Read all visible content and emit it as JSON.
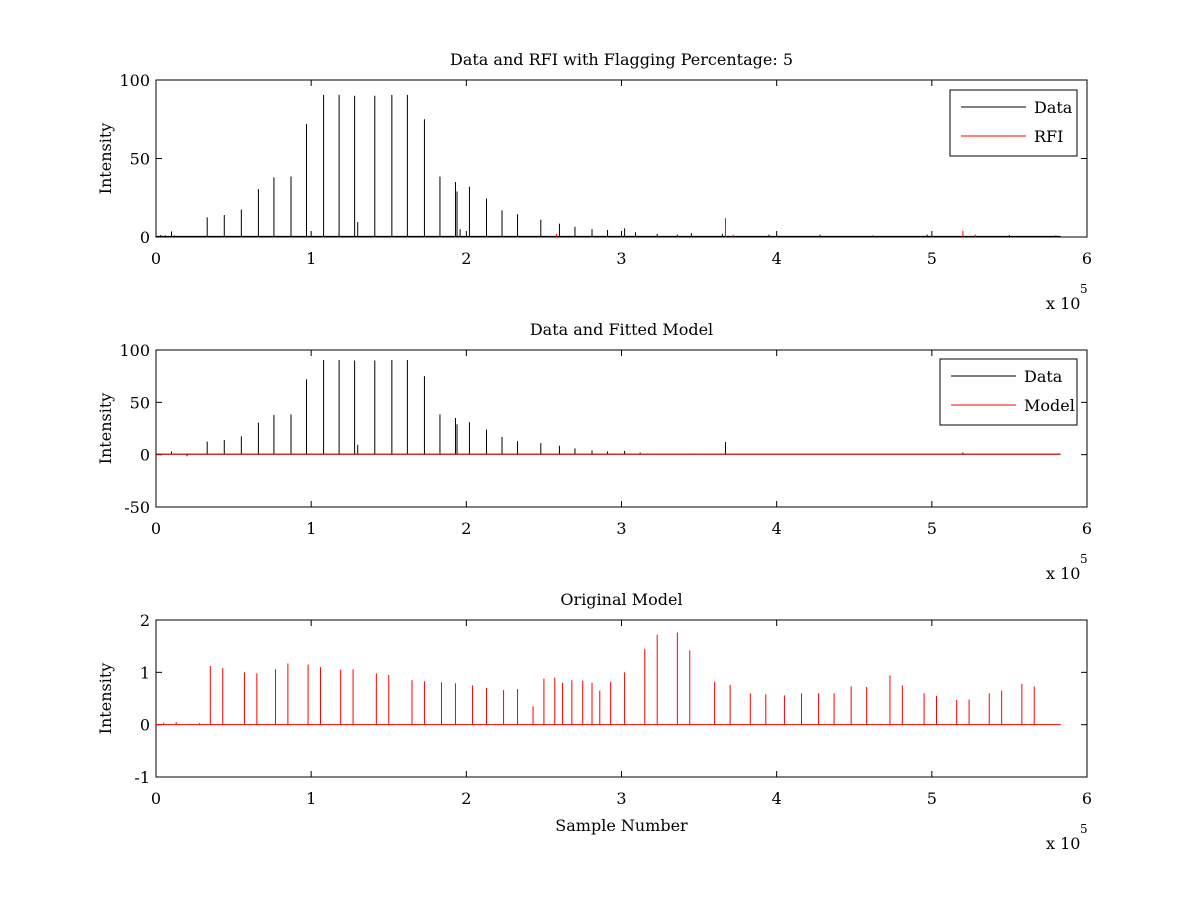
{
  "chart_data": [
    {
      "type": "line",
      "title": "Data and RFI with Flagging Percentage: 5",
      "ylabel": "Intensity",
      "xlabel": "",
      "xlim": [
        0,
        600000
      ],
      "ylim": [
        0,
        100
      ],
      "xticks": [
        0,
        1,
        2,
        3,
        4,
        5,
        6
      ],
      "yticks": [
        0,
        50,
        100
      ],
      "x_multiplier_base": "x 10",
      "x_multiplier_exp": "5",
      "grid": false,
      "legend_position": "top-right",
      "series": [
        {
          "name": "Data",
          "color": "#000000",
          "points": [
            [
              0,
              1.5
            ],
            [
              3000,
              1.2
            ],
            [
              6000,
              1.0
            ],
            [
              10000,
              3.5
            ],
            [
              12000,
              1.0
            ],
            [
              33000,
              12.5
            ],
            [
              44000,
              14
            ],
            [
              55000,
              17.5
            ],
            [
              66000,
              30.5
            ],
            [
              76000,
              38
            ],
            [
              87000,
              38.5
            ],
            [
              97000,
              72
            ],
            [
              108000,
              90.5
            ],
            [
              118000,
              90.5
            ],
            [
              128000,
              90
            ],
            [
              130000,
              9.5
            ],
            [
              141000,
              90
            ],
            [
              152000,
              90.5
            ],
            [
              162000,
              90.5
            ],
            [
              173000,
              75
            ],
            [
              183000,
              38.5
            ],
            [
              193000,
              35
            ],
            [
              194000,
              29
            ],
            [
              196000,
              5
            ],
            [
              202000,
              32
            ],
            [
              213000,
              24.5
            ],
            [
              223000,
              17
            ],
            [
              233000,
              14.5
            ],
            [
              248000,
              11
            ],
            [
              260000,
              8.5
            ],
            [
              270000,
              6.5
            ],
            [
              281000,
              5
            ],
            [
              291000,
              4.5
            ],
            [
              302000,
              5.5
            ],
            [
              309000,
              3
            ],
            [
              323000,
              2
            ],
            [
              336000,
              1.5
            ],
            [
              345000,
              2.5
            ],
            [
              365000,
              2
            ],
            [
              395000,
              1.5
            ],
            [
              428000,
              1.5
            ],
            [
              462000,
              1
            ],
            [
              497000,
              1.5
            ],
            [
              550000,
              1.2
            ],
            [
              580000,
              1
            ]
          ]
        },
        {
          "name": "RFI",
          "color": "#ff0000",
          "points": [
            [
              258000,
              2
            ],
            [
              367000,
              12
            ],
            [
              372000,
              1.5
            ],
            [
              520000,
              4
            ],
            [
              528000,
              1.5
            ]
          ]
        }
      ]
    },
    {
      "type": "line",
      "title": "Data and Fitted Model",
      "ylabel": "Intensity",
      "xlabel": "",
      "xlim": [
        0,
        600000
      ],
      "ylim": [
        -50,
        100
      ],
      "xticks": [
        0,
        1,
        2,
        3,
        4,
        5,
        6
      ],
      "yticks": [
        -50,
        0,
        50,
        100
      ],
      "x_multiplier_base": "x 10",
      "x_multiplier_exp": "5",
      "grid": false,
      "legend_position": "top-right",
      "series": [
        {
          "name": "Data",
          "color": "#000000",
          "points": [
            [
              10000,
              3
            ],
            [
              20000,
              -1.5
            ],
            [
              33000,
              12.5
            ],
            [
              44000,
              14
            ],
            [
              55000,
              17.5
            ],
            [
              66000,
              30.5
            ],
            [
              76000,
              38
            ],
            [
              87000,
              38.5
            ],
            [
              97000,
              72
            ],
            [
              108000,
              90.5
            ],
            [
              118000,
              90.5
            ],
            [
              128000,
              90
            ],
            [
              130000,
              9.5
            ],
            [
              141000,
              90
            ],
            [
              152000,
              90.5
            ],
            [
              162000,
              90.5
            ],
            [
              173000,
              75
            ],
            [
              183000,
              38.5
            ],
            [
              193000,
              35
            ],
            [
              194000,
              29
            ],
            [
              202000,
              31
            ],
            [
              213000,
              24
            ],
            [
              223000,
              17
            ],
            [
              233000,
              13
            ],
            [
              248000,
              11
            ],
            [
              260000,
              8.5
            ],
            [
              270000,
              6
            ],
            [
              281000,
              4
            ],
            [
              291000,
              3
            ],
            [
              302000,
              3.5
            ],
            [
              312000,
              2
            ],
            [
              345000,
              1
            ],
            [
              367000,
              12
            ],
            [
              520000,
              2
            ]
          ]
        },
        {
          "name": "Model",
          "color": "#ff0000",
          "flat": 0.5
        }
      ]
    },
    {
      "type": "line",
      "title": "Original Model",
      "ylabel": "Intensity",
      "xlabel": "Sample Number",
      "xlim": [
        0,
        600000
      ],
      "ylim": [
        -1,
        2
      ],
      "xticks": [
        0,
        1,
        2,
        3,
        4,
        5,
        6
      ],
      "yticks": [
        -1,
        0,
        1,
        2
      ],
      "x_multiplier_base": "x 10",
      "x_multiplier_exp": "5",
      "grid": false,
      "series": [
        {
          "name": "",
          "color": "#ff0000",
          "points": [
            [
              5000,
              0.04
            ],
            [
              13000,
              0.05
            ],
            [
              28000,
              0.03
            ],
            [
              35000,
              1.12
            ],
            [
              43000,
              1.08
            ],
            [
              57000,
              1.0
            ],
            [
              65000,
              0.98
            ],
            [
              77000,
              1.06
            ],
            [
              85000,
              1.17
            ],
            [
              98000,
              1.15
            ],
            [
              106000,
              1.1
            ],
            [
              119000,
              1.05
            ],
            [
              127000,
              1.06
            ],
            [
              142000,
              0.98
            ],
            [
              150000,
              0.95
            ],
            [
              165000,
              0.85
            ],
            [
              173000,
              0.83
            ],
            [
              184000,
              0.81
            ],
            [
              193000,
              0.79
            ],
            [
              204000,
              0.75
            ],
            [
              213000,
              0.7
            ],
            [
              224000,
              0.66
            ],
            [
              233000,
              0.68
            ],
            [
              243000,
              0.35
            ],
            [
              250000,
              0.88
            ],
            [
              257000,
              0.9
            ],
            [
              262000,
              0.8
            ],
            [
              268000,
              0.85
            ],
            [
              275000,
              0.84
            ],
            [
              281000,
              0.8
            ],
            [
              286000,
              0.65
            ],
            [
              293000,
              0.82
            ],
            [
              302000,
              1.0
            ],
            [
              315000,
              1.45
            ],
            [
              323000,
              1.72
            ],
            [
              336000,
              1.76
            ],
            [
              344000,
              1.42
            ],
            [
              360000,
              0.82
            ],
            [
              370000,
              0.76
            ],
            [
              383000,
              0.6
            ],
            [
              393000,
              0.58
            ],
            [
              405000,
              0.56
            ],
            [
              416000,
              0.6
            ],
            [
              427000,
              0.6
            ],
            [
              437000,
              0.6
            ],
            [
              448000,
              0.73
            ],
            [
              458000,
              0.72
            ],
            [
              473000,
              0.94
            ],
            [
              481000,
              0.75
            ],
            [
              495000,
              0.6
            ],
            [
              503000,
              0.55
            ],
            [
              516000,
              0.47
            ],
            [
              524000,
              0.48
            ],
            [
              537000,
              0.6
            ],
            [
              545000,
              0.65
            ],
            [
              558000,
              0.78
            ],
            [
              566000,
              0.73
            ]
          ]
        }
      ]
    }
  ]
}
